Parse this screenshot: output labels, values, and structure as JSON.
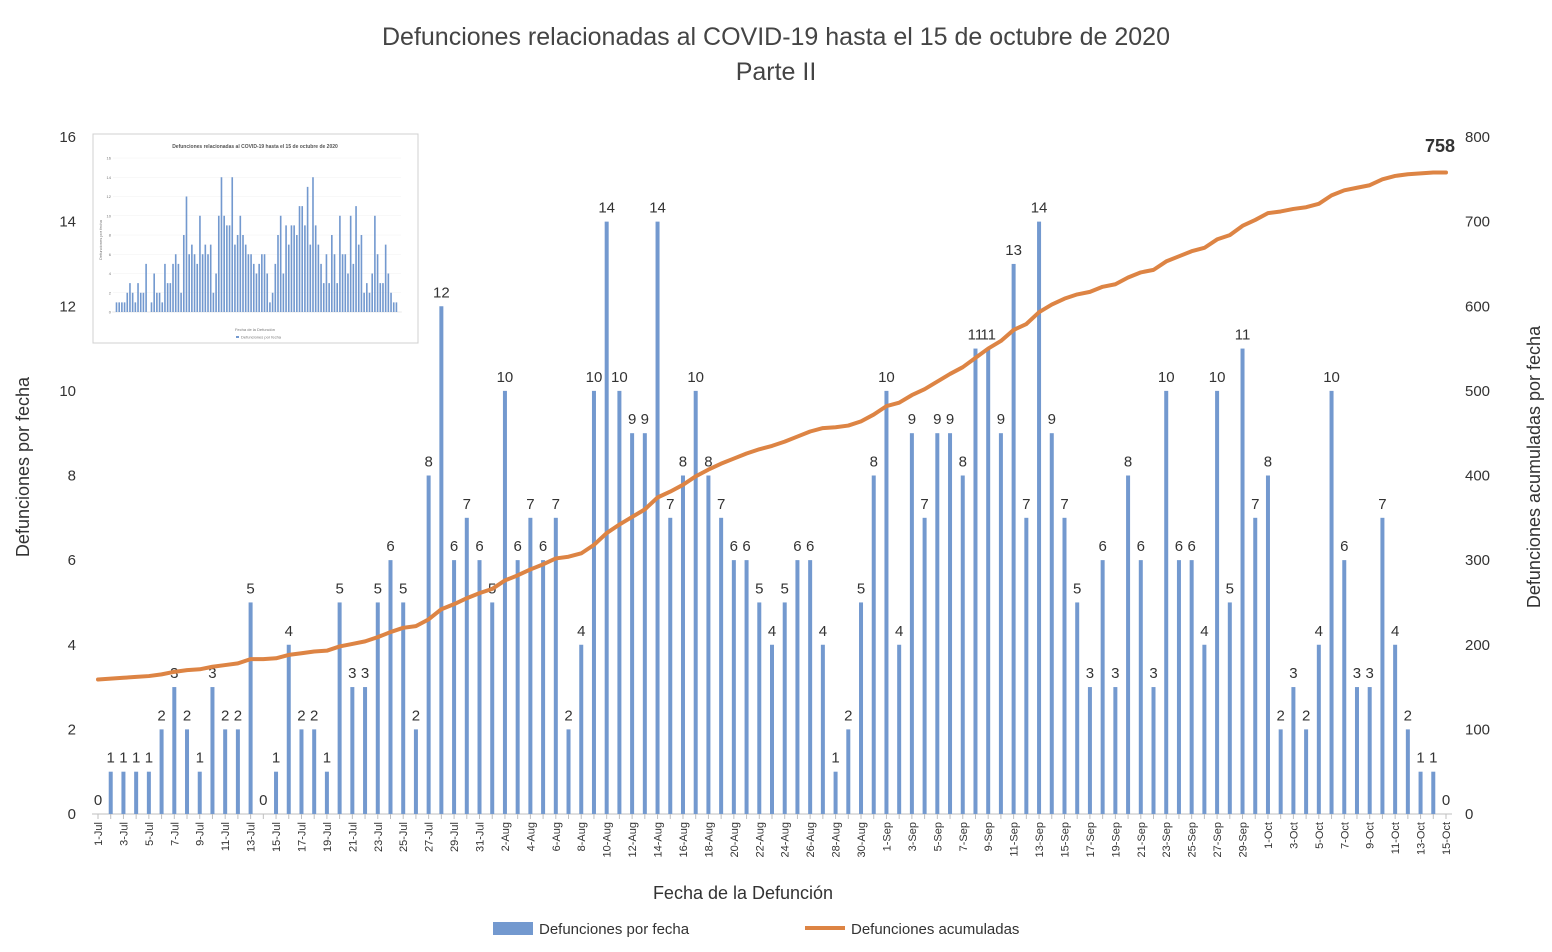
{
  "colors": {
    "bar": "#7399cf",
    "line": "#dd8444",
    "axis": "#bfbfbf"
  },
  "chart_data": {
    "type": "bar",
    "title": "Defunciones relacionadas al COVID-19 hasta el 15 de octubre de 2020",
    "subtitle": "Parte II",
    "xlabel": "Fecha de la Defunción",
    "ylabel": "Defunciones por fecha",
    "y2label": "Defunciones acumuladas por fecha",
    "ylim": [
      0,
      16
    ],
    "y2lim": [
      0,
      800
    ],
    "yticks": [
      "0",
      "2",
      "4",
      "6",
      "8",
      "10",
      "12",
      "14",
      "16"
    ],
    "y2ticks": [
      "0",
      "100",
      "200",
      "300",
      "400",
      "500",
      "600",
      "700",
      "800"
    ],
    "end_label": "758",
    "legend_position": "bottom",
    "categories": [
      "1-Jul",
      "2-Jul",
      "3-Jul",
      "4-Jul",
      "5-Jul",
      "6-Jul",
      "7-Jul",
      "8-Jul",
      "9-Jul",
      "10-Jul",
      "11-Jul",
      "12-Jul",
      "13-Jul",
      "14-Jul",
      "15-Jul",
      "16-Jul",
      "17-Jul",
      "18-Jul",
      "19-Jul",
      "20-Jul",
      "21-Jul",
      "22-Jul",
      "23-Jul",
      "24-Jul",
      "25-Jul",
      "26-Jul",
      "27-Jul",
      "28-Jul",
      "29-Jul",
      "30-Jul",
      "31-Jul",
      "1-Aug",
      "2-Aug",
      "3-Aug",
      "4-Aug",
      "5-Aug",
      "6-Aug",
      "7-Aug",
      "8-Aug",
      "9-Aug",
      "10-Aug",
      "11-Aug",
      "12-Aug",
      "13-Aug",
      "14-Aug",
      "15-Aug",
      "16-Aug",
      "17-Aug",
      "18-Aug",
      "19-Aug",
      "20-Aug",
      "21-Aug",
      "22-Aug",
      "23-Aug",
      "24-Aug",
      "25-Aug",
      "26-Aug",
      "27-Aug",
      "28-Aug",
      "29-Aug",
      "30-Aug",
      "31-Aug",
      "1-Sep",
      "2-Sep",
      "3-Sep",
      "4-Sep",
      "5-Sep",
      "6-Sep",
      "7-Sep",
      "8-Sep",
      "9-Sep",
      "10-Sep",
      "11-Sep",
      "12-Sep",
      "13-Sep",
      "14-Sep",
      "15-Sep",
      "16-Sep",
      "17-Sep",
      "18-Sep",
      "19-Sep",
      "20-Sep",
      "21-Sep",
      "22-Sep",
      "23-Sep",
      "24-Sep",
      "25-Sep",
      "26-Sep",
      "27-Sep",
      "28-Sep",
      "29-Sep",
      "30-Sep",
      "1-Oct",
      "2-Oct",
      "3-Oct",
      "4-Oct",
      "5-Oct",
      "6-Oct",
      "7-Oct",
      "8-Oct",
      "9-Oct",
      "10-Oct",
      "11-Oct",
      "12-Oct",
      "13-Oct",
      "14-Oct",
      "15-Oct"
    ],
    "series": [
      {
        "name": "Defunciones por fecha",
        "type": "bar",
        "values": [
          0,
          1,
          1,
          1,
          1,
          2,
          3,
          2,
          1,
          3,
          2,
          2,
          5,
          0,
          1,
          4,
          2,
          2,
          1,
          5,
          3,
          3,
          5,
          6,
          5,
          2,
          8,
          12,
          6,
          7,
          6,
          5,
          10,
          6,
          7,
          6,
          7,
          2,
          4,
          10,
          14,
          10,
          9,
          9,
          14,
          7,
          8,
          10,
          8,
          7,
          6,
          6,
          5,
          4,
          5,
          6,
          6,
          4,
          1,
          2,
          5,
          8,
          10,
          4,
          9,
          7,
          9,
          9,
          8,
          11,
          11,
          9,
          13,
          7,
          14,
          9,
          7,
          5,
          3,
          6,
          3,
          8,
          6,
          3,
          10,
          6,
          6,
          4,
          10,
          5,
          11,
          7,
          8,
          2,
          3,
          2,
          4,
          10,
          6,
          3,
          3,
          7,
          4,
          2,
          1,
          1,
          0
        ]
      },
      {
        "name": "Defunciones acumuladas",
        "type": "line",
        "values": [
          159,
          160,
          161,
          162,
          163,
          165,
          168,
          170,
          171,
          174,
          176,
          178,
          183,
          183,
          184,
          188,
          190,
          192,
          193,
          198,
          201,
          204,
          209,
          215,
          220,
          222,
          230,
          242,
          248,
          255,
          261,
          266,
          276,
          282,
          289,
          295,
          302,
          304,
          308,
          318,
          332,
          342,
          351,
          360,
          374,
          381,
          389,
          399,
          407,
          414,
          420,
          426,
          431,
          435,
          440,
          446,
          452,
          456,
          457,
          459,
          464,
          472,
          482,
          486,
          495,
          502,
          511,
          520,
          528,
          539,
          550,
          559,
          572,
          579,
          593,
          602,
          609,
          614,
          617,
          623,
          626,
          634,
          640,
          643,
          653,
          659,
          665,
          669,
          679,
          684,
          695,
          702,
          710,
          712,
          715,
          717,
          721,
          731,
          737,
          740,
          743,
          750,
          754,
          756,
          757,
          758,
          758
        ]
      }
    ]
  },
  "thumbnail": {
    "title": "Defunciones relacionadas al COVID-19 hasta el 15 de octubre de 2020",
    "ylabel": "Defunciones por fecha",
    "xlabel": "Fecha de la Defunción",
    "legend": "Defunciones por fecha",
    "yticks": [
      "0",
      "2",
      "4",
      "6",
      "8",
      "10",
      "12",
      "14",
      "16"
    ]
  }
}
